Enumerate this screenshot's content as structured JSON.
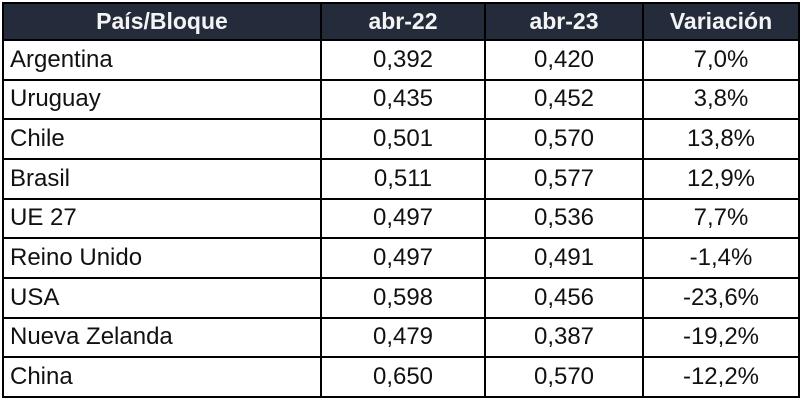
{
  "chart_data": {
    "type": "table",
    "title": "",
    "columns": [
      "País/Bloque",
      "abr-22",
      "abr-23",
      "Variación"
    ],
    "rows": [
      {
        "pais": "Argentina",
        "abr22": "0,392",
        "abr23": "0,420",
        "variacion": "7,0%"
      },
      {
        "pais": "Uruguay",
        "abr22": "0,435",
        "abr23": "0,452",
        "variacion": "3,8%"
      },
      {
        "pais": "Chile",
        "abr22": "0,501",
        "abr23": "0,570",
        "variacion": "13,8%"
      },
      {
        "pais": "Brasil",
        "abr22": "0,511",
        "abr23": "0,577",
        "variacion": "12,9%"
      },
      {
        "pais": "UE 27",
        "abr22": "0,497",
        "abr23": "0,536",
        "variacion": "7,7%"
      },
      {
        "pais": "Reino Unido",
        "abr22": "0,497",
        "abr23": "0,491",
        "variacion": "-1,4%"
      },
      {
        "pais": "USA",
        "abr22": "0,598",
        "abr23": "0,456",
        "variacion": "-23,6%"
      },
      {
        "pais": "Nueva Zelanda",
        "abr22": "0,479",
        "abr23": "0,387",
        "variacion": "-19,2%"
      },
      {
        "pais": "China",
        "abr22": "0,650",
        "abr23": "0,570",
        "variacion": "-12,2%"
      }
    ],
    "numeric_values": {
      "abr22": [
        0.392,
        0.435,
        0.501,
        0.511,
        0.497,
        0.497,
        0.598,
        0.479,
        0.65
      ],
      "abr23": [
        0.42,
        0.452,
        0.57,
        0.577,
        0.536,
        0.491,
        0.456,
        0.387,
        0.57
      ],
      "variacion_pct": [
        7.0,
        3.8,
        13.8,
        12.9,
        7.7,
        -1.4,
        -23.6,
        -19.2,
        -12.2
      ]
    },
    "colors": {
      "header_bg": "#242c3b",
      "header_text": "#f4f4f4",
      "border": "#000000",
      "cell_bg": "#ffffff",
      "cell_text": "#111111"
    }
  }
}
